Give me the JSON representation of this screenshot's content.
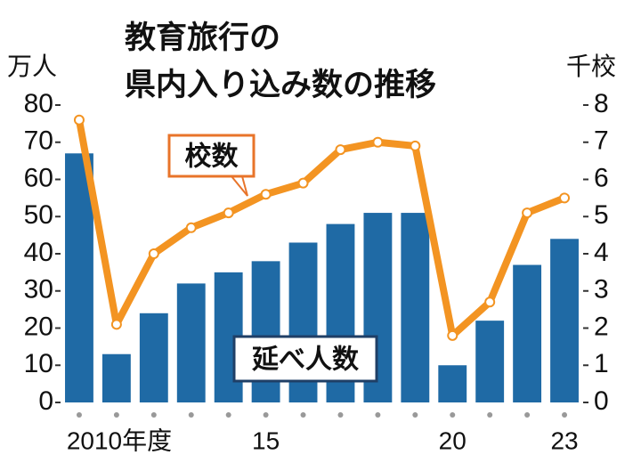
{
  "chart_data": {
    "type": "bar_line",
    "title": [
      "教育旅行の",
      "県内入り込み数の推移"
    ],
    "y_label": "万人",
    "y2_label": "千校",
    "categories": [
      "2010年度",
      null,
      null,
      null,
      null,
      "15",
      null,
      null,
      null,
      null,
      "20",
      null,
      null,
      "23"
    ],
    "series": [
      {
        "name": "延べ人数",
        "type": "bar",
        "axis": "y",
        "color": "#1f6aa5",
        "values": [
          67,
          13,
          24,
          32,
          35,
          38,
          43,
          48,
          51,
          51,
          10,
          22,
          37,
          44
        ]
      },
      {
        "name": "校数",
        "type": "line",
        "axis": "y2",
        "color": "#f39422",
        "values": [
          7.6,
          2.1,
          4.0,
          4.7,
          5.1,
          5.6,
          5.9,
          6.8,
          7.0,
          6.9,
          1.8,
          2.7,
          5.1,
          5.5
        ]
      }
    ],
    "ylim": [
      0,
      80
    ],
    "yticks": [
      0,
      10,
      20,
      30,
      40,
      50,
      60,
      70,
      80
    ],
    "y2lim": [
      0,
      8
    ],
    "y2ticks": [
      0,
      1,
      2,
      3,
      4,
      5,
      6,
      7,
      8
    ]
  }
}
